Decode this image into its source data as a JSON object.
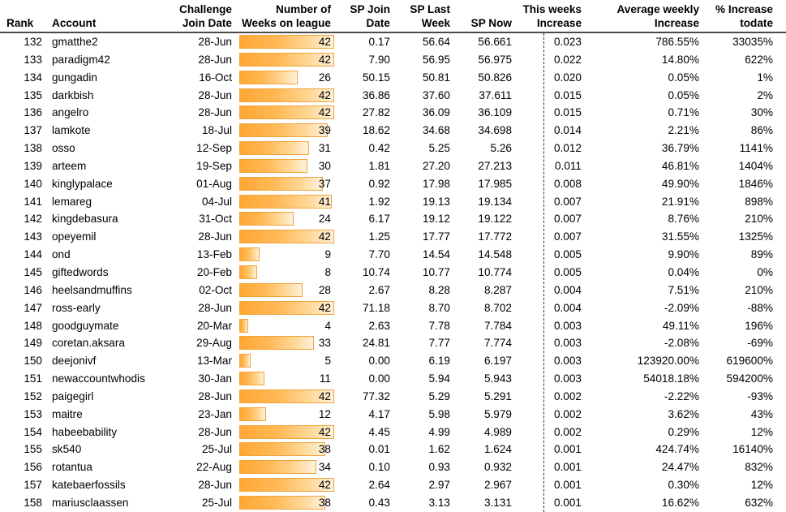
{
  "table": {
    "weeks_bar_max": 42,
    "headers": {
      "rank": {
        "line1": "",
        "line2": "Rank"
      },
      "account": {
        "line1": "",
        "line2": "Account"
      },
      "join": {
        "line1": "Challenge",
        "line2": "Join Date"
      },
      "weeks": {
        "line1": "Number of",
        "line2": "Weeks on league"
      },
      "sp_join": {
        "line1": "SP Join",
        "line2": "Date"
      },
      "sp_last": {
        "line1": "SP Last",
        "line2": "Week"
      },
      "sp_now": {
        "line1": "",
        "line2": "SP Now"
      },
      "this_week": {
        "line1": "This weeks",
        "line2": "Increase"
      },
      "avg_week": {
        "line1": "Average weekly",
        "line2": "Increase"
      },
      "pct": {
        "line1": "% Increase",
        "line2": "todate"
      }
    },
    "rows": [
      {
        "rank": "132",
        "account": "gmatthe2",
        "join": "28-Jun",
        "weeks": 42,
        "sp_join": "0.17",
        "sp_last": "56.64",
        "sp_now": "56.661",
        "this_week": "0.023",
        "avg_week": "786.55%",
        "pct": "33035%"
      },
      {
        "rank": "133",
        "account": "paradigm42",
        "join": "28-Jun",
        "weeks": 42,
        "sp_join": "7.90",
        "sp_last": "56.95",
        "sp_now": "56.975",
        "this_week": "0.022",
        "avg_week": "14.80%",
        "pct": "622%"
      },
      {
        "rank": "134",
        "account": "gungadin",
        "join": "16-Oct",
        "weeks": 26,
        "sp_join": "50.15",
        "sp_last": "50.81",
        "sp_now": "50.826",
        "this_week": "0.020",
        "avg_week": "0.05%",
        "pct": "1%"
      },
      {
        "rank": "135",
        "account": "darkbish",
        "join": "28-Jun",
        "weeks": 42,
        "sp_join": "36.86",
        "sp_last": "37.60",
        "sp_now": "37.611",
        "this_week": "0.015",
        "avg_week": "0.05%",
        "pct": "2%"
      },
      {
        "rank": "136",
        "account": "angelro",
        "join": "28-Jun",
        "weeks": 42,
        "sp_join": "27.82",
        "sp_last": "36.09",
        "sp_now": "36.109",
        "this_week": "0.015",
        "avg_week": "0.71%",
        "pct": "30%"
      },
      {
        "rank": "137",
        "account": "lamkote",
        "join": "18-Jul",
        "weeks": 39,
        "sp_join": "18.62",
        "sp_last": "34.68",
        "sp_now": "34.698",
        "this_week": "0.014",
        "avg_week": "2.21%",
        "pct": "86%"
      },
      {
        "rank": "138",
        "account": "osso",
        "join": "12-Sep",
        "weeks": 31,
        "sp_join": "0.42",
        "sp_last": "5.25",
        "sp_now": "5.26",
        "this_week": "0.012",
        "avg_week": "36.79%",
        "pct": "1141%"
      },
      {
        "rank": "139",
        "account": "arteem",
        "join": "19-Sep",
        "weeks": 30,
        "sp_join": "1.81",
        "sp_last": "27.20",
        "sp_now": "27.213",
        "this_week": "0.011",
        "avg_week": "46.81%",
        "pct": "1404%"
      },
      {
        "rank": "140",
        "account": "kinglypalace",
        "join": "01-Aug",
        "weeks": 37,
        "sp_join": "0.92",
        "sp_last": "17.98",
        "sp_now": "17.985",
        "this_week": "0.008",
        "avg_week": "49.90%",
        "pct": "1846%"
      },
      {
        "rank": "141",
        "account": "lemareg",
        "join": "04-Jul",
        "weeks": 41,
        "sp_join": "1.92",
        "sp_last": "19.13",
        "sp_now": "19.134",
        "this_week": "0.007",
        "avg_week": "21.91%",
        "pct": "898%"
      },
      {
        "rank": "142",
        "account": "kingdebasura",
        "join": "31-Oct",
        "weeks": 24,
        "sp_join": "6.17",
        "sp_last": "19.12",
        "sp_now": "19.122",
        "this_week": "0.007",
        "avg_week": "8.76%",
        "pct": "210%"
      },
      {
        "rank": "143",
        "account": "opeyemil",
        "join": "28-Jun",
        "weeks": 42,
        "sp_join": "1.25",
        "sp_last": "17.77",
        "sp_now": "17.772",
        "this_week": "0.007",
        "avg_week": "31.55%",
        "pct": "1325%"
      },
      {
        "rank": "144",
        "account": "ond",
        "join": "13-Feb",
        "weeks": 9,
        "sp_join": "7.70",
        "sp_last": "14.54",
        "sp_now": "14.548",
        "this_week": "0.005",
        "avg_week": "9.90%",
        "pct": "89%"
      },
      {
        "rank": "145",
        "account": "giftedwords",
        "join": "20-Feb",
        "weeks": 8,
        "sp_join": "10.74",
        "sp_last": "10.77",
        "sp_now": "10.774",
        "this_week": "0.005",
        "avg_week": "0.04%",
        "pct": "0%"
      },
      {
        "rank": "146",
        "account": "heelsandmuffins",
        "join": "02-Oct",
        "weeks": 28,
        "sp_join": "2.67",
        "sp_last": "8.28",
        "sp_now": "8.287",
        "this_week": "0.004",
        "avg_week": "7.51%",
        "pct": "210%"
      },
      {
        "rank": "147",
        "account": "ross-early",
        "join": "28-Jun",
        "weeks": 42,
        "sp_join": "71.18",
        "sp_last": "8.70",
        "sp_now": "8.702",
        "this_week": "0.004",
        "avg_week": "-2.09%",
        "pct": "-88%"
      },
      {
        "rank": "148",
        "account": "goodguymate",
        "join": "20-Mar",
        "weeks": 4,
        "sp_join": "2.63",
        "sp_last": "7.78",
        "sp_now": "7.784",
        "this_week": "0.003",
        "avg_week": "49.11%",
        "pct": "196%"
      },
      {
        "rank": "149",
        "account": "coretan.aksara",
        "join": "29-Aug",
        "weeks": 33,
        "sp_join": "24.81",
        "sp_last": "7.77",
        "sp_now": "7.774",
        "this_week": "0.003",
        "avg_week": "-2.08%",
        "pct": "-69%"
      },
      {
        "rank": "150",
        "account": "deejonivf",
        "join": "13-Mar",
        "weeks": 5,
        "sp_join": "0.00",
        "sp_last": "6.19",
        "sp_now": "6.197",
        "this_week": "0.003",
        "avg_week": "123920.00%",
        "pct": "619600%"
      },
      {
        "rank": "151",
        "account": "newaccountwhodis",
        "join": "30-Jan",
        "weeks": 11,
        "sp_join": "0.00",
        "sp_last": "5.94",
        "sp_now": "5.943",
        "this_week": "0.003",
        "avg_week": "54018.18%",
        "pct": "594200%"
      },
      {
        "rank": "152",
        "account": "paigegirl",
        "join": "28-Jun",
        "weeks": 42,
        "sp_join": "77.32",
        "sp_last": "5.29",
        "sp_now": "5.291",
        "this_week": "0.002",
        "avg_week": "-2.22%",
        "pct": "-93%"
      },
      {
        "rank": "153",
        "account": "maitre",
        "join": "23-Jan",
        "weeks": 12,
        "sp_join": "4.17",
        "sp_last": "5.98",
        "sp_now": "5.979",
        "this_week": "0.002",
        "avg_week": "3.62%",
        "pct": "43%"
      },
      {
        "rank": "154",
        "account": "habeebability",
        "join": "28-Jun",
        "weeks": 42,
        "sp_join": "4.45",
        "sp_last": "4.99",
        "sp_now": "4.989",
        "this_week": "0.002",
        "avg_week": "0.29%",
        "pct": "12%"
      },
      {
        "rank": "155",
        "account": "sk540",
        "join": "25-Jul",
        "weeks": 38,
        "sp_join": "0.01",
        "sp_last": "1.62",
        "sp_now": "1.624",
        "this_week": "0.001",
        "avg_week": "424.74%",
        "pct": "16140%"
      },
      {
        "rank": "156",
        "account": "rotantua",
        "join": "22-Aug",
        "weeks": 34,
        "sp_join": "0.10",
        "sp_last": "0.93",
        "sp_now": "0.932",
        "this_week": "0.001",
        "avg_week": "24.47%",
        "pct": "832%"
      },
      {
        "rank": "157",
        "account": "katebaerfossils",
        "join": "28-Jun",
        "weeks": 42,
        "sp_join": "2.64",
        "sp_last": "2.97",
        "sp_now": "2.967",
        "this_week": "0.001",
        "avg_week": "0.30%",
        "pct": "12%"
      },
      {
        "rank": "158",
        "account": "mariusclaassen",
        "join": "25-Jul",
        "weeks": 38,
        "sp_join": "0.43",
        "sp_last": "3.13",
        "sp_now": "3.131",
        "this_week": "0.001",
        "avg_week": "16.62%",
        "pct": "632%"
      }
    ]
  },
  "styles": {
    "bar_fill_start": "#ffa733",
    "bar_fill_end": "#fdf2dd",
    "bar_border": "#f0a43c",
    "header_rule": "#4a4a4a",
    "divider": "#2e2e2e",
    "text": "#000000",
    "background": "#ffffff"
  }
}
